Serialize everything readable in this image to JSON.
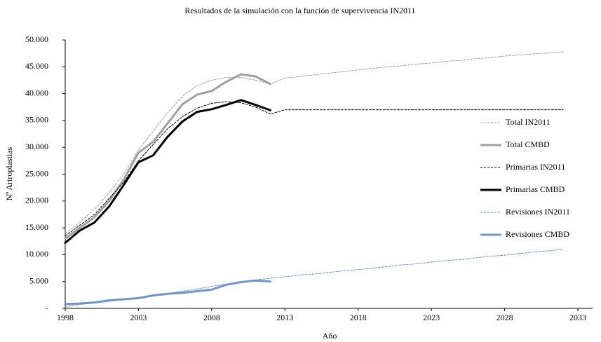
{
  "chart_data": {
    "type": "line",
    "title": "Resultados de la simulación con la función de supervivencia IN2011",
    "xlabel": "Año",
    "ylabel": "Nº Artroplastias",
    "x": [
      1998,
      1999,
      2000,
      2001,
      2002,
      2003,
      2004,
      2005,
      2006,
      2007,
      2008,
      2009,
      2010,
      2011,
      2012,
      2013,
      2014,
      2015,
      2016,
      2017,
      2018,
      2019,
      2020,
      2021,
      2022,
      2023,
      2024,
      2025,
      2026,
      2027,
      2028,
      2029,
      2030,
      2031,
      2032
    ],
    "xlim": [
      1998,
      2033
    ],
    "xticks": [
      1998,
      2003,
      2008,
      2013,
      2018,
      2023,
      2028,
      2033
    ],
    "ylim": [
      0,
      50000
    ],
    "yticks": [
      {
        "value": 0,
        "label": "-"
      },
      {
        "value": 5000,
        "label": "5.000"
      },
      {
        "value": 10000,
        "label": "10.000"
      },
      {
        "value": 15000,
        "label": "15.000"
      },
      {
        "value": 20000,
        "label": "20.000"
      },
      {
        "value": 25000,
        "label": "25.000"
      },
      {
        "value": 30000,
        "label": "30.000"
      },
      {
        "value": 35000,
        "label": "35.000"
      },
      {
        "value": 40000,
        "label": "40.000"
      },
      {
        "value": 45000,
        "label": "45.000"
      },
      {
        "value": 50000,
        "label": "50.000"
      }
    ],
    "grid": false,
    "legend": "right",
    "series": [
      {
        "name": "Total IN2011",
        "color": "#a0a0a0",
        "style": "dashed",
        "width": 1,
        "values": [
          14000,
          16000,
          18500,
          21500,
          25000,
          29500,
          33000,
          36500,
          39500,
          41500,
          42500,
          43000,
          43000,
          42500,
          41800,
          42900,
          43200,
          43500,
          43800,
          44100,
          44400,
          44700,
          45000,
          45200,
          45500,
          45700,
          46000,
          46200,
          46500,
          46700,
          47000,
          47200,
          47400,
          47600,
          47800
        ]
      },
      {
        "name": "Total CMBD",
        "color": "#a0a0a0",
        "style": "solid",
        "width": 3,
        "values": [
          13000,
          15000,
          17000,
          20000,
          24000,
          29000,
          31000,
          34500,
          38000,
          39800,
          40500,
          42200,
          43600,
          43200,
          41800,
          null,
          null,
          null,
          null,
          null,
          null,
          null,
          null,
          null,
          null,
          null,
          null,
          null,
          null,
          null,
          null,
          null,
          null,
          null,
          null
        ]
      },
      {
        "name": "Primarias IN2011",
        "color": "#000000",
        "style": "dashed",
        "width": 1,
        "values": [
          13500,
          15500,
          17500,
          20500,
          23500,
          27500,
          30500,
          33500,
          35700,
          37300,
          38200,
          38500,
          38300,
          37500,
          36200,
          37000,
          37000,
          37000,
          37000,
          37000,
          37000,
          37000,
          37000,
          37000,
          37000,
          37000,
          37000,
          37000,
          37000,
          37000,
          37000,
          37000,
          37000,
          37000,
          37000
        ]
      },
      {
        "name": "Primarias CMBD",
        "color": "#000000",
        "style": "solid",
        "width": 3,
        "values": [
          12200,
          14500,
          16000,
          19000,
          23000,
          27200,
          28500,
          32000,
          34800,
          36600,
          37100,
          37900,
          38800,
          37900,
          36900,
          null,
          null,
          null,
          null,
          null,
          null,
          null,
          null,
          null,
          null,
          null,
          null,
          null,
          null,
          null,
          null,
          null,
          null,
          null,
          null
        ]
      },
      {
        "name": "Revisiones IN2011",
        "color": "#6f96c8",
        "style": "dashed",
        "width": 1,
        "values": [
          300,
          700,
          1000,
          1300,
          1600,
          2000,
          2400,
          2800,
          3200,
          3600,
          4100,
          4500,
          4900,
          5300,
          5600,
          5900,
          6200,
          6400,
          6700,
          7000,
          7200,
          7500,
          7800,
          8100,
          8300,
          8600,
          8900,
          9100,
          9400,
          9700,
          9900,
          10200,
          10500,
          10700,
          11000
        ]
      },
      {
        "name": "Revisiones CMBD",
        "color": "#6f96c8",
        "style": "solid",
        "width": 3,
        "values": [
          800,
          900,
          1100,
          1500,
          1700,
          1900,
          2400,
          2700,
          2900,
          3200,
          3500,
          4400,
          4900,
          5200,
          5000,
          null,
          null,
          null,
          null,
          null,
          null,
          null,
          null,
          null,
          null,
          null,
          null,
          null,
          null,
          null,
          null,
          null,
          null,
          null,
          null
        ]
      }
    ]
  }
}
